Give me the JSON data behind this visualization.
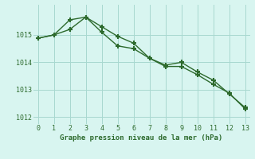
{
  "line1_x": [
    0,
    1,
    2,
    3,
    4,
    5,
    6,
    7,
    8,
    9,
    10,
    11,
    12,
    13
  ],
  "line1_y": [
    1014.88,
    1015.0,
    1015.55,
    1015.65,
    1015.3,
    1014.95,
    1014.7,
    1014.15,
    1013.9,
    1014.0,
    1013.65,
    1013.35,
    1012.85,
    1012.35
  ],
  "line2_x": [
    0,
    1,
    2,
    3,
    4,
    5,
    6,
    7,
    8,
    9,
    10,
    11,
    12,
    13
  ],
  "line2_y": [
    1014.88,
    1015.0,
    1015.2,
    1015.65,
    1015.1,
    1014.6,
    1014.5,
    1014.15,
    1013.85,
    1013.85,
    1013.55,
    1013.2,
    1012.88,
    1012.3
  ],
  "line_color": "#2d6a2d",
  "bg_color": "#d8f5f0",
  "grid_color": "#a8d8d0",
  "xlabel": "Graphe pression niveau de la mer (hPa)",
  "ylim": [
    1011.75,
    1016.1
  ],
  "xlim": [
    -0.3,
    13.3
  ],
  "yticks": [
    1012,
    1013,
    1014,
    1015
  ],
  "xticks": [
    0,
    1,
    2,
    3,
    4,
    5,
    6,
    7,
    8,
    9,
    10,
    11,
    12,
    13
  ],
  "marker": "+",
  "markersize": 5,
  "markeredgewidth": 1.5,
  "linewidth": 1.0
}
